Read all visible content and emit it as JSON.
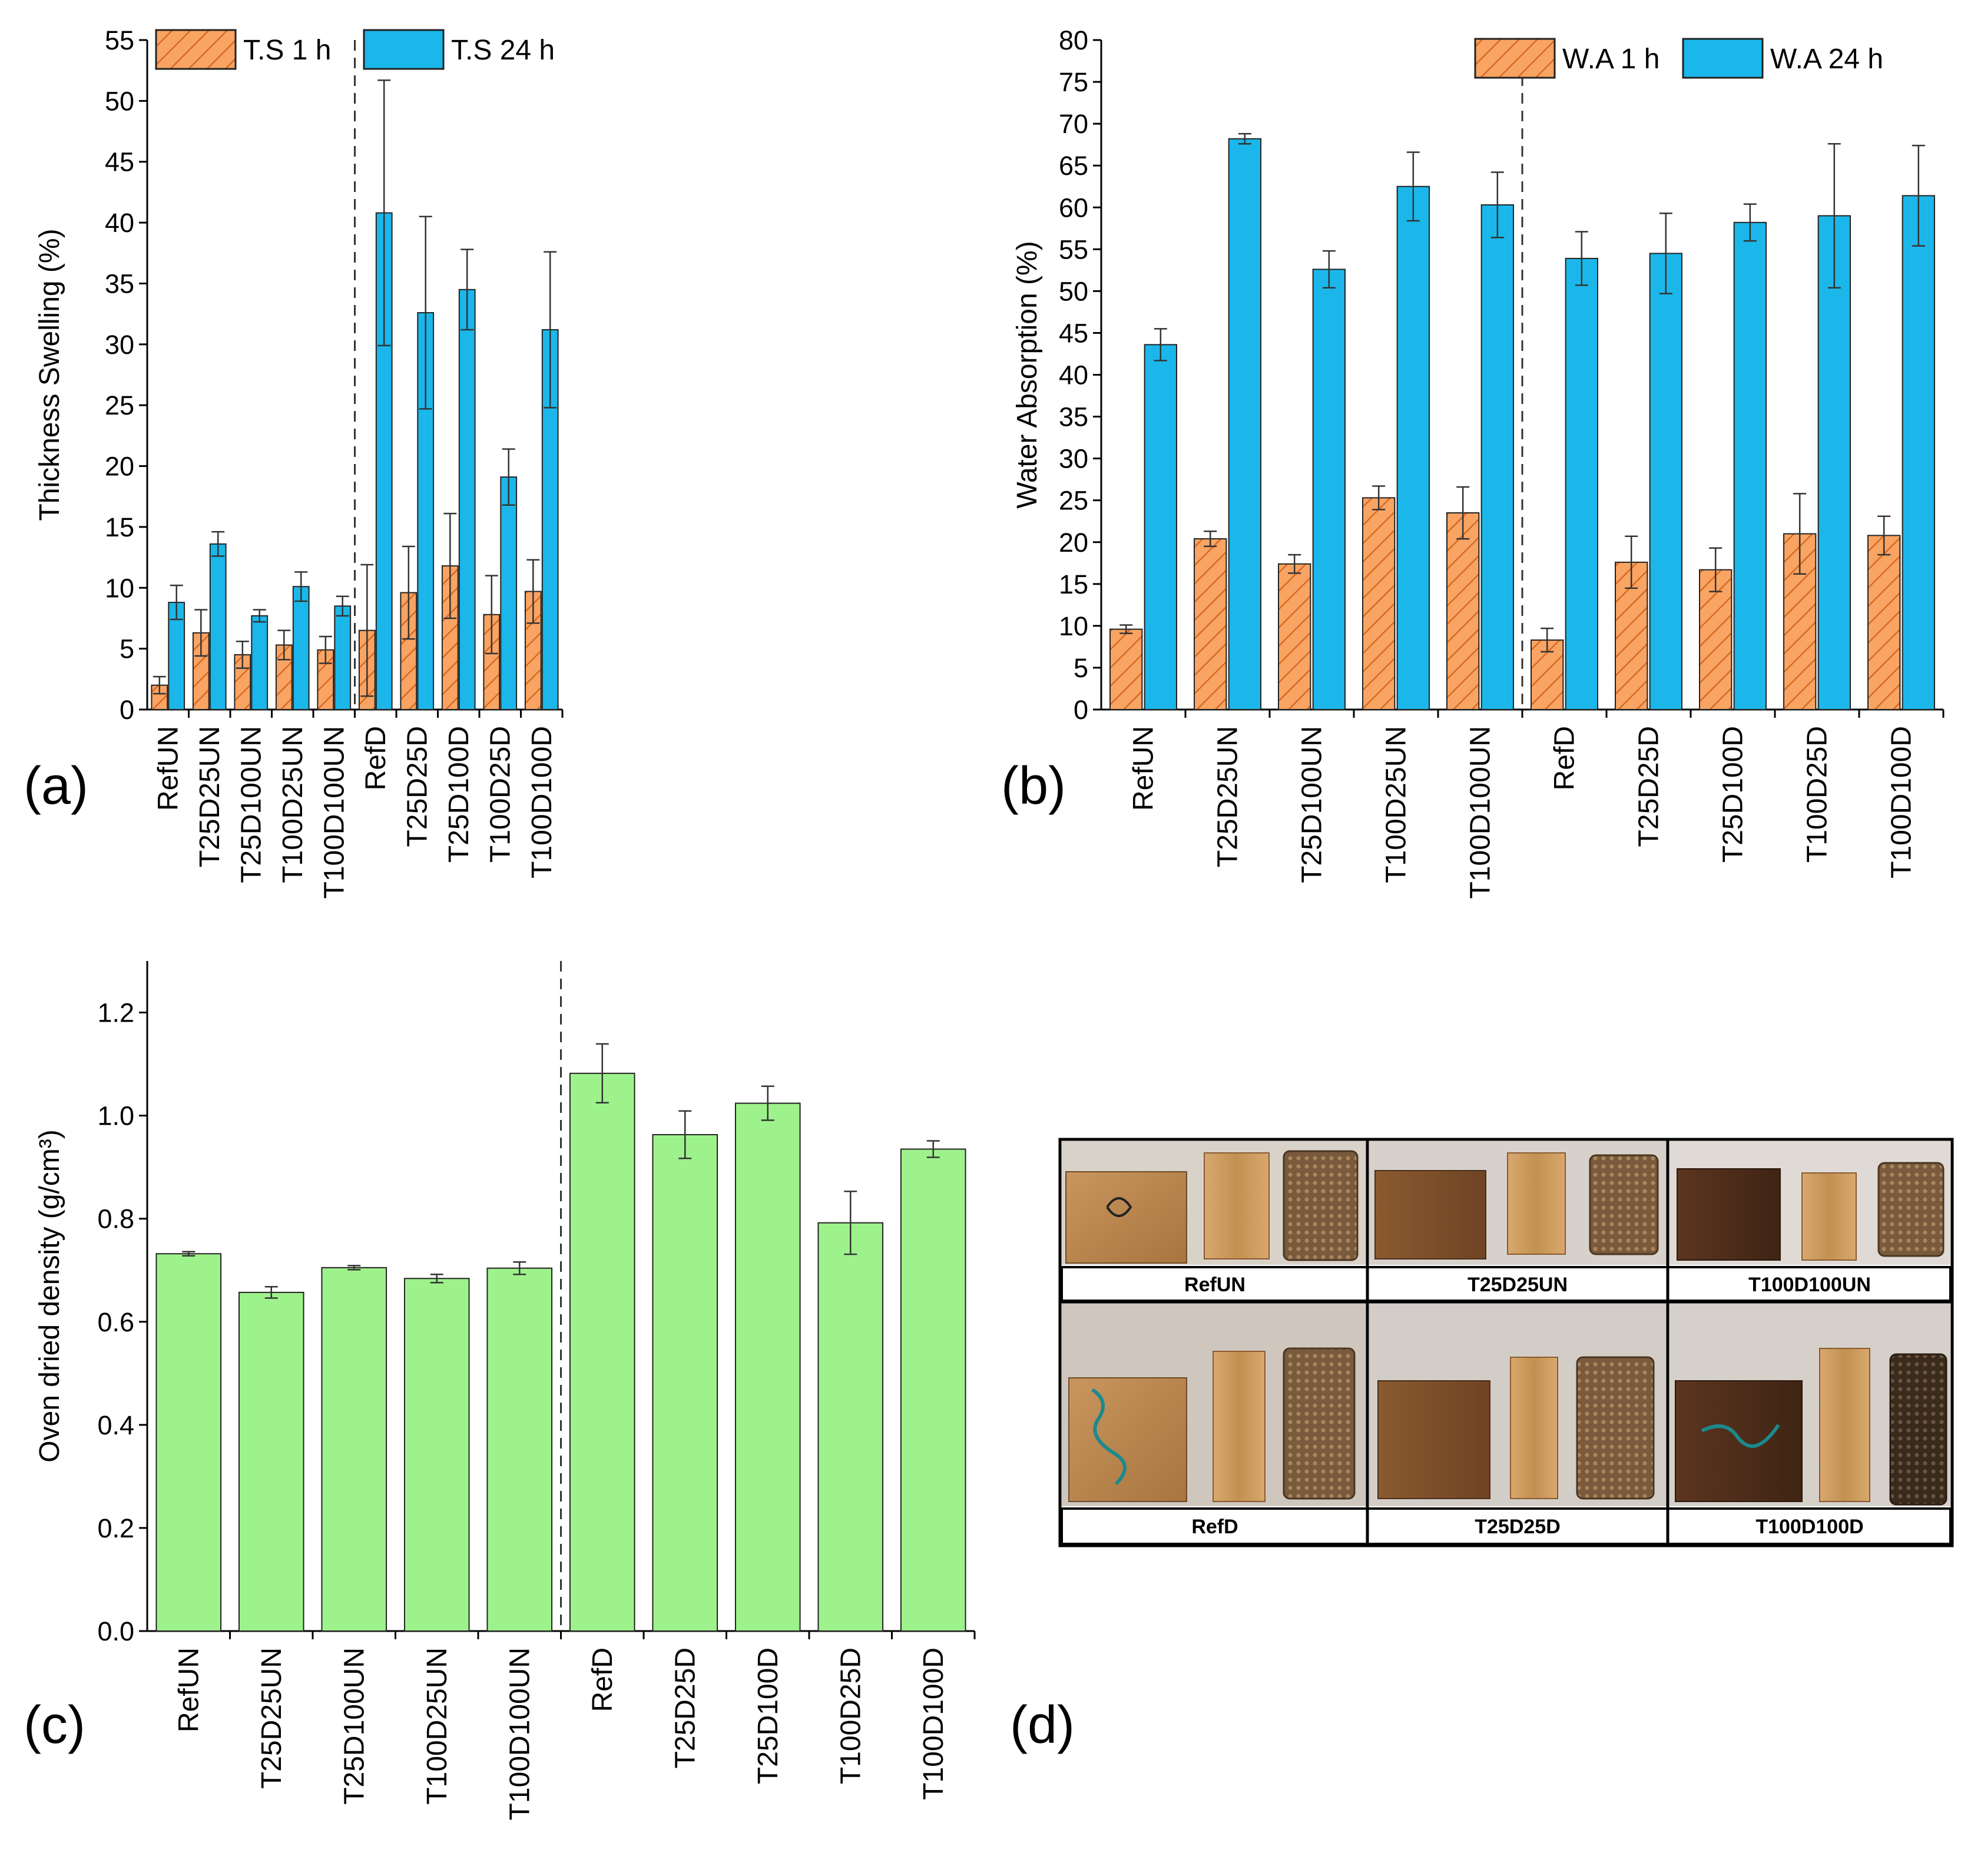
{
  "colors": {
    "orange": "#f9a463",
    "orange_hatch": "#d96a22",
    "blue": "#1bb7ea",
    "green": "#9ef28c",
    "bar_edge": "#222222"
  },
  "panels": {
    "a": "(a)",
    "b": "(b)",
    "c": "(c)",
    "d": "(d)"
  },
  "chart_data": [
    {
      "id": "a",
      "type": "bar",
      "ylabel": "Thickness Swelling (%)",
      "ylim": [
        0,
        55
      ],
      "yticks": [
        0,
        5,
        10,
        15,
        20,
        25,
        30,
        35,
        40,
        45,
        50,
        55
      ],
      "legend_position": "top-left",
      "divider_after_index": 4,
      "categories": [
        "RefUN",
        "T25D25UN",
        "T25D100UN",
        "T100D25UN",
        "T100D100UN",
        "RefD",
        "T25D25D",
        "T25D100D",
        "T100D25D",
        "T100D100D"
      ],
      "series": [
        {
          "name": "T.S 1 h",
          "style": "hatch",
          "color": "#f9a463",
          "values": [
            2.0,
            6.3,
            4.5,
            5.3,
            4.9,
            6.5,
            9.6,
            11.8,
            7.8,
            9.7
          ],
          "errors": [
            0.7,
            1.9,
            1.1,
            1.2,
            1.1,
            5.4,
            3.8,
            4.3,
            3.2,
            2.6
          ]
        },
        {
          "name": "T.S 24 h",
          "style": "solid",
          "color": "#1bb7ea",
          "values": [
            8.8,
            13.6,
            7.7,
            10.1,
            8.5,
            40.8,
            32.6,
            34.5,
            19.1,
            31.2
          ],
          "errors": [
            1.4,
            1.0,
            0.5,
            1.2,
            0.8,
            10.9,
            7.9,
            3.3,
            2.3,
            6.4
          ]
        }
      ]
    },
    {
      "id": "b",
      "type": "bar",
      "ylabel": "Water Absorption (%)",
      "ylim": [
        0,
        80
      ],
      "yticks": [
        0,
        5,
        10,
        15,
        20,
        25,
        30,
        35,
        40,
        45,
        50,
        55,
        60,
        65,
        70,
        75,
        80
      ],
      "legend_position": "top-right",
      "divider_after_index": 4,
      "categories": [
        "RefUN",
        "T25D25UN",
        "T25D100UN",
        "T100D25UN",
        "T100D100UN",
        "RefD",
        "T25D25D",
        "T25D100D",
        "T100D25D",
        "T100D100D"
      ],
      "series": [
        {
          "name": "W.A 1 h",
          "style": "hatch",
          "color": "#f9a463",
          "values": [
            9.6,
            20.4,
            17.4,
            25.3,
            23.5,
            8.3,
            17.6,
            16.7,
            21.0,
            20.8
          ],
          "errors": [
            0.5,
            0.9,
            1.1,
            1.4,
            3.1,
            1.4,
            3.1,
            2.6,
            4.8,
            2.3
          ]
        },
        {
          "name": "W.A 24 h",
          "style": "solid",
          "color": "#1bb7ea",
          "values": [
            43.6,
            68.2,
            52.6,
            62.5,
            60.3,
            53.9,
            54.5,
            58.2,
            59.0,
            61.4
          ],
          "errors": [
            1.9,
            0.6,
            2.2,
            4.1,
            3.9,
            3.2,
            4.8,
            2.2,
            8.6,
            6.0
          ]
        }
      ]
    },
    {
      "id": "c",
      "type": "bar",
      "ylabel": "Oven dried density (g/cm³)",
      "ylim": [
        0,
        1.3
      ],
      "yticks": [
        "0.0",
        "0.2",
        "0.4",
        "0.6",
        "0.8",
        "1.0",
        "1.2"
      ],
      "divider_after_index": 4,
      "categories": [
        "RefUN",
        "T25D25UN",
        "T25D100UN",
        "T100D25UN",
        "T100D100UN",
        "RefD",
        "T25D25D",
        "T25D100D",
        "T100D25D",
        "T100D100D"
      ],
      "series": [
        {
          "name": "Oven dried density",
          "style": "solid",
          "color": "#9ef28c",
          "values": [
            0.732,
            0.657,
            0.705,
            0.684,
            0.704,
            1.082,
            0.963,
            1.024,
            0.792,
            0.935
          ],
          "errors": [
            0.004,
            0.011,
            0.004,
            0.008,
            0.012,
            0.057,
            0.046,
            0.033,
            0.061,
            0.016
          ]
        }
      ]
    }
  ],
  "photos": {
    "labels": [
      "RefUN",
      "T25D25UN",
      "T100D100UN",
      "RefD",
      "T25D25D",
      "T100D100D"
    ]
  }
}
